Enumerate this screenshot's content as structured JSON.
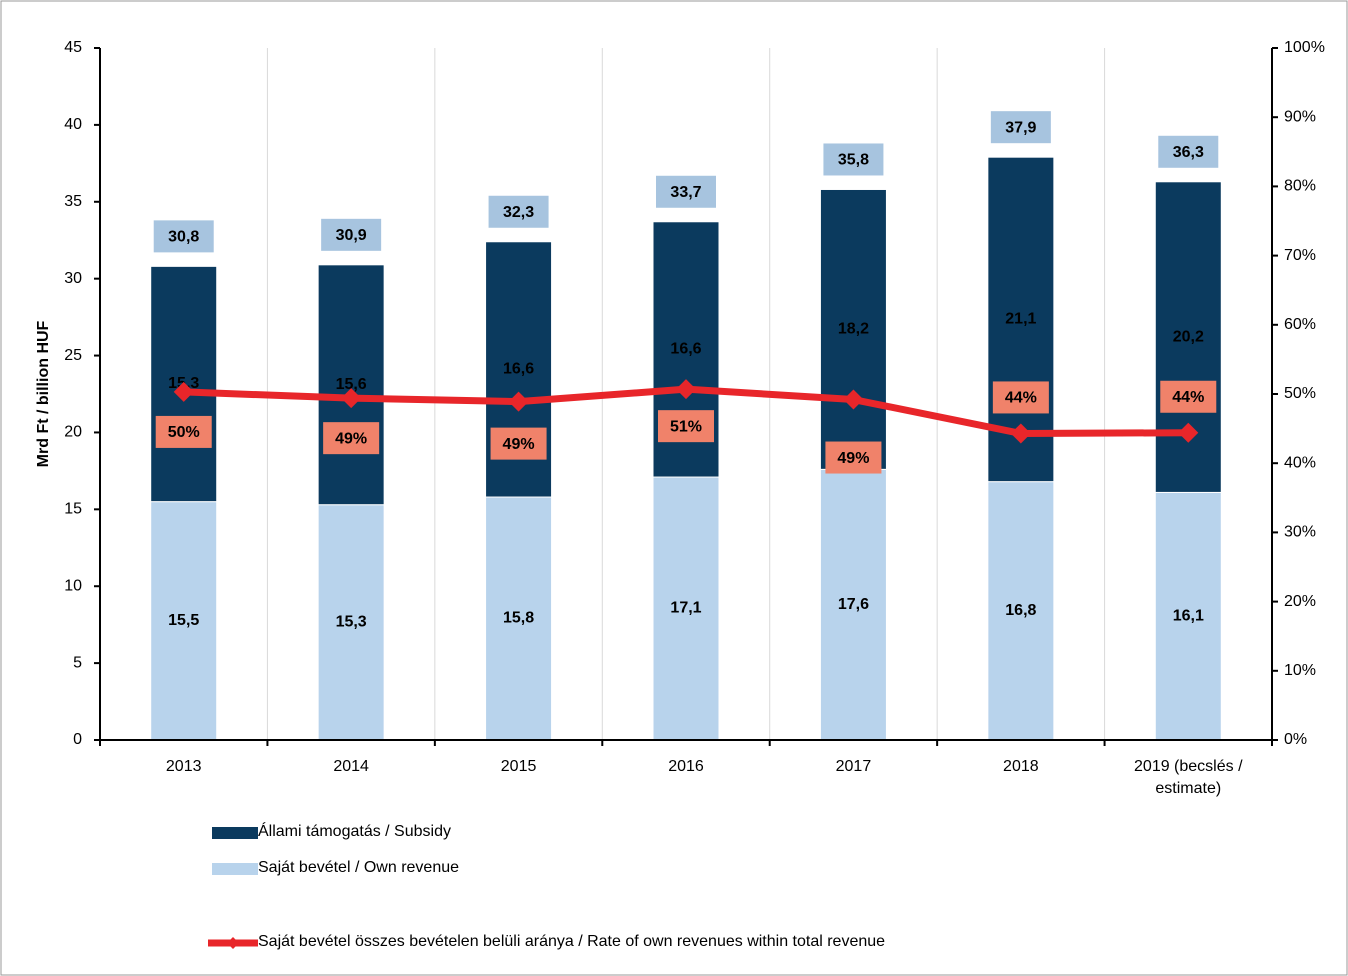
{
  "chart_data": {
    "type": "bar",
    "stacked": true,
    "y_label": "Mrd Ft / billion HUF",
    "categories": [
      "2013",
      "2014",
      "2015",
      "2016",
      "2017",
      "2018",
      "2019 (becslés / estimate)"
    ],
    "series": [
      {
        "name": "Saját bevétel / Own revenue",
        "color": "#b8d3ec",
        "values": [
          15.5,
          15.3,
          15.8,
          17.1,
          17.6,
          16.8,
          16.1
        ],
        "value_labels": [
          "15,5",
          "15,3",
          "15,8",
          "17,1",
          "17,6",
          "16,8",
          "16,1"
        ]
      },
      {
        "name": "Állami támogatás / Subsidy",
        "color": "#0b3a5e",
        "values": [
          15.3,
          15.6,
          16.6,
          16.6,
          18.2,
          21.1,
          20.2
        ],
        "value_labels": [
          "15,3",
          "15,6",
          "16,6",
          "16,6",
          "18,2",
          "21,1",
          "20,2"
        ]
      },
      {
        "name": "Saját bevétel összes bevételen belüli aránya / Rate of own revenues within total revenue",
        "type": "line",
        "axis": "y2",
        "color": "#e8262a",
        "values": [
          50.3,
          49.4,
          48.9,
          50.7,
          49.2,
          44.3,
          44.4
        ],
        "value_labels": [
          "50%",
          "49%",
          "49%",
          "51%",
          "49%",
          "44%",
          "44%"
        ]
      }
    ],
    "totals": {
      "values": [
        30.8,
        30.9,
        32.3,
        33.7,
        35.8,
        37.9,
        36.3
      ],
      "value_labels": [
        "30,8",
        "30,9",
        "32,3",
        "33,7",
        "35,8",
        "37,9",
        "36,3"
      ]
    },
    "ylim": [
      0,
      45
    ],
    "yticks": [
      0,
      5,
      10,
      15,
      20,
      25,
      30,
      35,
      40,
      45
    ],
    "y2lim": [
      0,
      100
    ],
    "y2ticks": [
      {
        "value": 0,
        "label": "0%"
      },
      {
        "value": 10,
        "label": "10%"
      },
      {
        "value": 20,
        "label": "20%"
      },
      {
        "value": 30,
        "label": "30%"
      },
      {
        "value": 40,
        "label": "40%"
      },
      {
        "value": 50,
        "label": "50%"
      },
      {
        "value": 60,
        "label": "60%"
      },
      {
        "value": 70,
        "label": "70%"
      },
      {
        "value": 80,
        "label": "80%"
      },
      {
        "value": 90,
        "label": "90%"
      },
      {
        "value": 100,
        "label": "100%"
      }
    ],
    "grid": true
  }
}
